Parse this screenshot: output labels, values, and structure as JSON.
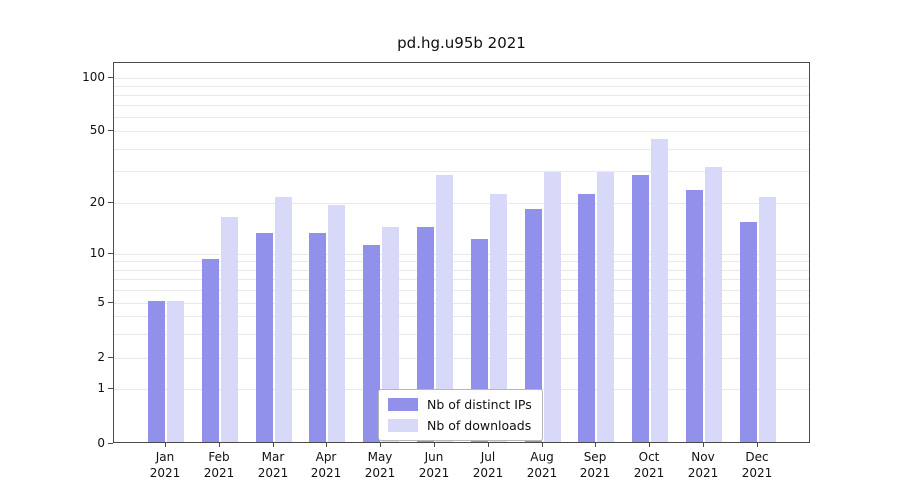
{
  "chart_data": {
    "type": "bar",
    "title": "pd.hg.u95b 2021",
    "categories": [
      "Jan",
      "Feb",
      "Mar",
      "Apr",
      "May",
      "Jun",
      "Jul",
      "Aug",
      "Sep",
      "Oct",
      "Nov",
      "Dec"
    ],
    "category_year": "2021",
    "series": [
      {
        "name": "Nb of distinct IPs",
        "color": "#9191ec",
        "values": [
          5,
          9,
          13,
          13,
          11,
          14,
          12,
          18,
          22,
          28,
          23,
          15
        ]
      },
      {
        "name": "Nb of downloads",
        "color": "#d8d8f8",
        "values": [
          5,
          16,
          21,
          19,
          14,
          28,
          22,
          29,
          29,
          44,
          31,
          21
        ]
      }
    ],
    "yscale": "symlog",
    "yticks": [
      0,
      1,
      2,
      5,
      10,
      20,
      50,
      100
    ],
    "ylim": [
      0,
      120
    ],
    "grid": "horizontal",
    "legend_position": "lower center"
  }
}
